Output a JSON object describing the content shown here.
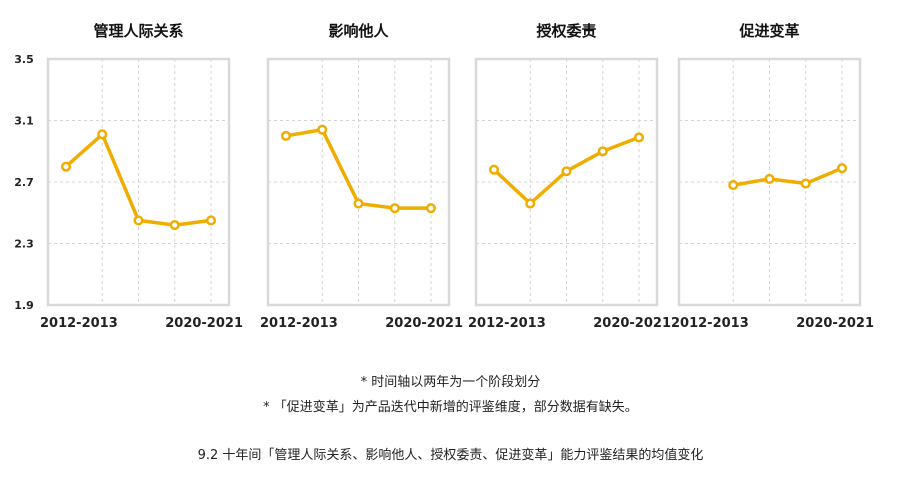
{
  "colors": {
    "line": "#f0ad00",
    "frame": "#d9d9d9",
    "grid": "#d4d4d4"
  },
  "chart_data": [
    {
      "type": "line",
      "title": "管理人际关系",
      "x": [
        "2012-2013",
        "",
        "",
        "",
        "2020-2021"
      ],
      "values": [
        2.8,
        3.01,
        2.45,
        2.42,
        2.45
      ],
      "ylim": [
        1.9,
        3.5
      ],
      "yticks": [
        "3.5",
        "3.1",
        "2.7",
        "2.3",
        "1.9"
      ],
      "xlabels": [
        "2012-2013",
        "2020-2021"
      ],
      "grid": true
    },
    {
      "type": "line",
      "title": "影响他人",
      "x": [
        "2012-2013",
        "",
        "",
        "",
        "2020-2021"
      ],
      "values": [
        3.0,
        3.04,
        2.56,
        2.53,
        2.53
      ],
      "ylim": [
        1.9,
        3.5
      ],
      "xlabels": [
        "2012-2013",
        "2020-2021"
      ],
      "grid": true
    },
    {
      "type": "line",
      "title": "授权委责",
      "x": [
        "2012-2013",
        "",
        "",
        "",
        "2020-2021"
      ],
      "values": [
        2.78,
        2.56,
        2.77,
        2.9,
        2.99
      ],
      "ylim": [
        1.9,
        3.5
      ],
      "xlabels": [
        "2012-2013",
        "2020-2021"
      ],
      "grid": true
    },
    {
      "type": "line",
      "title": "促进变革",
      "x": [
        "2012-2013",
        "",
        "",
        "",
        "2020-2021"
      ],
      "values": [
        null,
        2.68,
        2.72,
        2.69,
        2.79
      ],
      "ylim": [
        1.9,
        3.5
      ],
      "xlabels": [
        "2012-2013",
        "2020-2021"
      ],
      "grid": true
    }
  ],
  "notes": {
    "note1": "* 时间轴以两年为一个阶段划分",
    "note2": "* 「促进变革」为产品迭代中新增的评鉴维度，部分数据有缺失。"
  },
  "caption": "9.2 十年间「管理人际关系、影响他人、授权委责、促进变革」能力评鉴结果的均值变化"
}
